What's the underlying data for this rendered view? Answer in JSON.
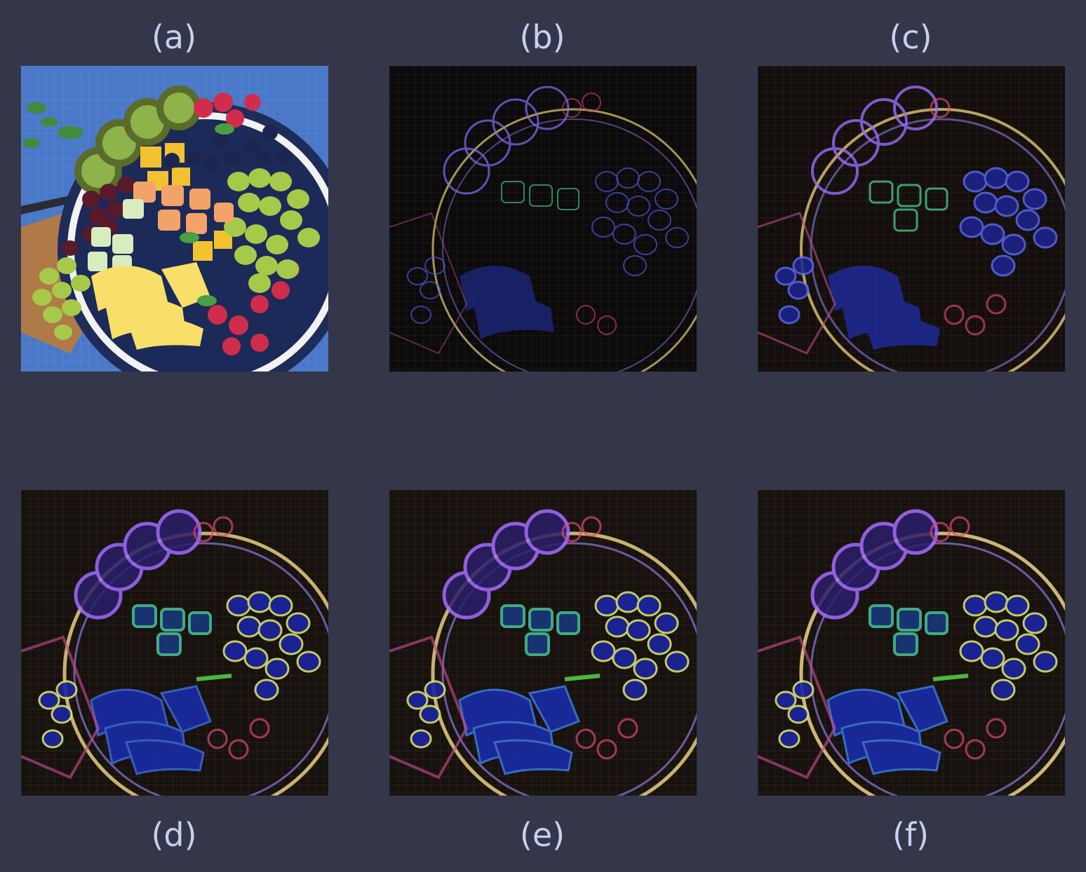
{
  "figure": {
    "panels": [
      {
        "label": "(a)",
        "description_icon": "fruit-platter-photo"
      },
      {
        "label": "(b)",
        "description_icon": "edge-map-photo"
      },
      {
        "label": "(c)",
        "description_icon": "edge-map-photo"
      },
      {
        "label": "(d)",
        "description_icon": "edge-map-photo"
      },
      {
        "label": "(e)",
        "description_icon": "edge-map-photo"
      },
      {
        "label": "(f)",
        "description_icon": "edge-map-photo"
      }
    ],
    "colors": {
      "background": "#34364a",
      "label": "#c9cfee",
      "photo_backdrop": "#4a78c8",
      "edge_backdrop": "#0c0a0a"
    }
  }
}
